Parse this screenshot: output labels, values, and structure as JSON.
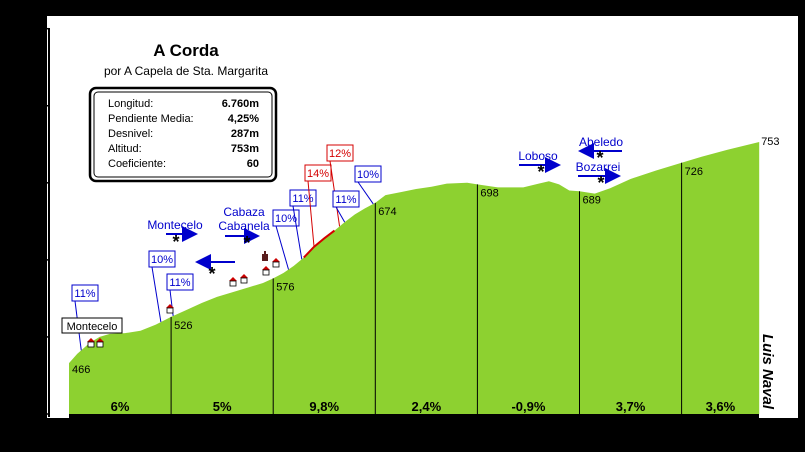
{
  "title": "A Corda",
  "subtitle": "por A Capela de Sta. Margarita",
  "author": "Luis Naval",
  "stats": [
    {
      "label": "Longitud:",
      "value": "6.760m"
    },
    {
      "label": "Pendiente Media:",
      "value": "4,25%"
    },
    {
      "label": "Desnivel:",
      "value": "287m"
    },
    {
      "label": "Altitud:",
      "value": "753m"
    },
    {
      "label": "Coeficiente:",
      "value": "60"
    }
  ],
  "colors": {
    "fill": "#8dd130",
    "blue": "#0000cc",
    "red": "#d40000",
    "bar": "#000000"
  },
  "chart_data": {
    "type": "area",
    "title": "A Corda",
    "subtitle": "por A Capela de Sta. Margarita",
    "xlabel": "",
    "ylabel": "",
    "xlim": [
      0,
      6.76
    ],
    "ylim": [
      400,
      900
    ],
    "x_ticks": [
      "0",
      "1",
      "2",
      "3",
      "4",
      "5",
      "6",
      "6,76"
    ],
    "x_tick_values": [
      0,
      1,
      2,
      3,
      4,
      5,
      6,
      6.76
    ],
    "y_ticks": [
      "400",
      "500",
      "600",
      "700",
      "800",
      "900"
    ],
    "y_tick_values": [
      400,
      500,
      600,
      700,
      800,
      900
    ],
    "grid": false,
    "profile": [
      [
        0,
        466
      ],
      [
        0.08,
        478
      ],
      [
        0.2,
        492
      ],
      [
        0.3,
        500
      ],
      [
        0.4,
        504
      ],
      [
        0.55,
        505
      ],
      [
        0.7,
        508
      ],
      [
        0.85,
        516
      ],
      [
        1,
        526
      ],
      [
        1.15,
        535
      ],
      [
        1.3,
        544
      ],
      [
        1.45,
        552
      ],
      [
        1.6,
        558
      ],
      [
        1.75,
        564
      ],
      [
        1.9,
        570
      ],
      [
        2,
        576
      ],
      [
        2.1,
        583
      ],
      [
        2.2,
        592
      ],
      [
        2.3,
        603
      ],
      [
        2.4,
        617
      ],
      [
        2.5,
        628
      ],
      [
        2.6,
        638
      ],
      [
        2.7,
        649
      ],
      [
        2.8,
        659
      ],
      [
        2.9,
        667
      ],
      [
        3,
        674
      ],
      [
        3.1,
        684
      ],
      [
        3.25,
        688
      ],
      [
        3.4,
        692
      ],
      [
        3.55,
        695
      ],
      [
        3.7,
        699
      ],
      [
        3.9,
        700
      ],
      [
        4,
        698
      ],
      [
        4.2,
        694
      ],
      [
        4.45,
        694
      ],
      [
        4.6,
        699
      ],
      [
        4.7,
        702
      ],
      [
        4.8,
        698
      ],
      [
        4.9,
        690
      ],
      [
        5,
        689
      ],
      [
        5.15,
        686
      ],
      [
        5.3,
        693
      ],
      [
        5.5,
        705
      ],
      [
        5.75,
        716
      ],
      [
        6,
        726
      ],
      [
        6.2,
        734
      ],
      [
        6.45,
        743
      ],
      [
        6.76,
        753
      ]
    ],
    "km_markers": [
      {
        "km": 0,
        "altitude": 466
      },
      {
        "km": 1,
        "altitude": 526
      },
      {
        "km": 2,
        "altitude": 576
      },
      {
        "km": 3,
        "altitude": 674
      },
      {
        "km": 4,
        "altitude": 698
      },
      {
        "km": 5,
        "altitude": 689
      },
      {
        "km": 6,
        "altitude": 726
      },
      {
        "km": 6.76,
        "altitude": 753
      }
    ],
    "km_gradients": [
      {
        "from": 0,
        "to": 1,
        "label": "6%"
      },
      {
        "from": 1,
        "to": 2,
        "label": "5%"
      },
      {
        "from": 2,
        "to": 3,
        "label": "9,8%"
      },
      {
        "from": 3,
        "to": 4,
        "label": "2,4%"
      },
      {
        "from": 4,
        "to": 5,
        "label": "-0,9%"
      },
      {
        "from": 5,
        "to": 6,
        "label": "3,7%"
      },
      {
        "from": 6,
        "to": 6.76,
        "label": "3,6%"
      }
    ],
    "steep_sections": [
      {
        "label": "11%",
        "km": 0.12,
        "color": "blue"
      },
      {
        "label": "10%",
        "km": 0.9,
        "color": "blue"
      },
      {
        "label": "11%",
        "km": 1.02,
        "color": "blue"
      },
      {
        "label": "10%",
        "km": 2.15,
        "color": "blue"
      },
      {
        "label": "11%",
        "km": 2.28,
        "color": "blue"
      },
      {
        "label": "14%",
        "km": 2.4,
        "color": "red"
      },
      {
        "label": "12%",
        "km": 2.65,
        "color": "red"
      },
      {
        "label": "11%",
        "km": 2.7,
        "color": "blue"
      },
      {
        "label": "10%",
        "km": 2.98,
        "color": "blue"
      }
    ],
    "junctions": [
      {
        "label": "Montecelo",
        "km": 1.05,
        "direction": "right"
      },
      {
        "label": "Cabaza",
        "km": 1.45,
        "direction": "left"
      },
      {
        "label": "Cabanela",
        "km": 1.75,
        "direction": "right"
      },
      {
        "label": "Loboso",
        "km": 4.65,
        "direction": "right"
      },
      {
        "label": "Abeledo",
        "km": 5.2,
        "direction": "left"
      },
      {
        "label": "Bozarrei",
        "km": 5.2,
        "direction": "right"
      }
    ],
    "villages": [
      {
        "label": "Montecelo",
        "km": 0.22
      }
    ]
  }
}
